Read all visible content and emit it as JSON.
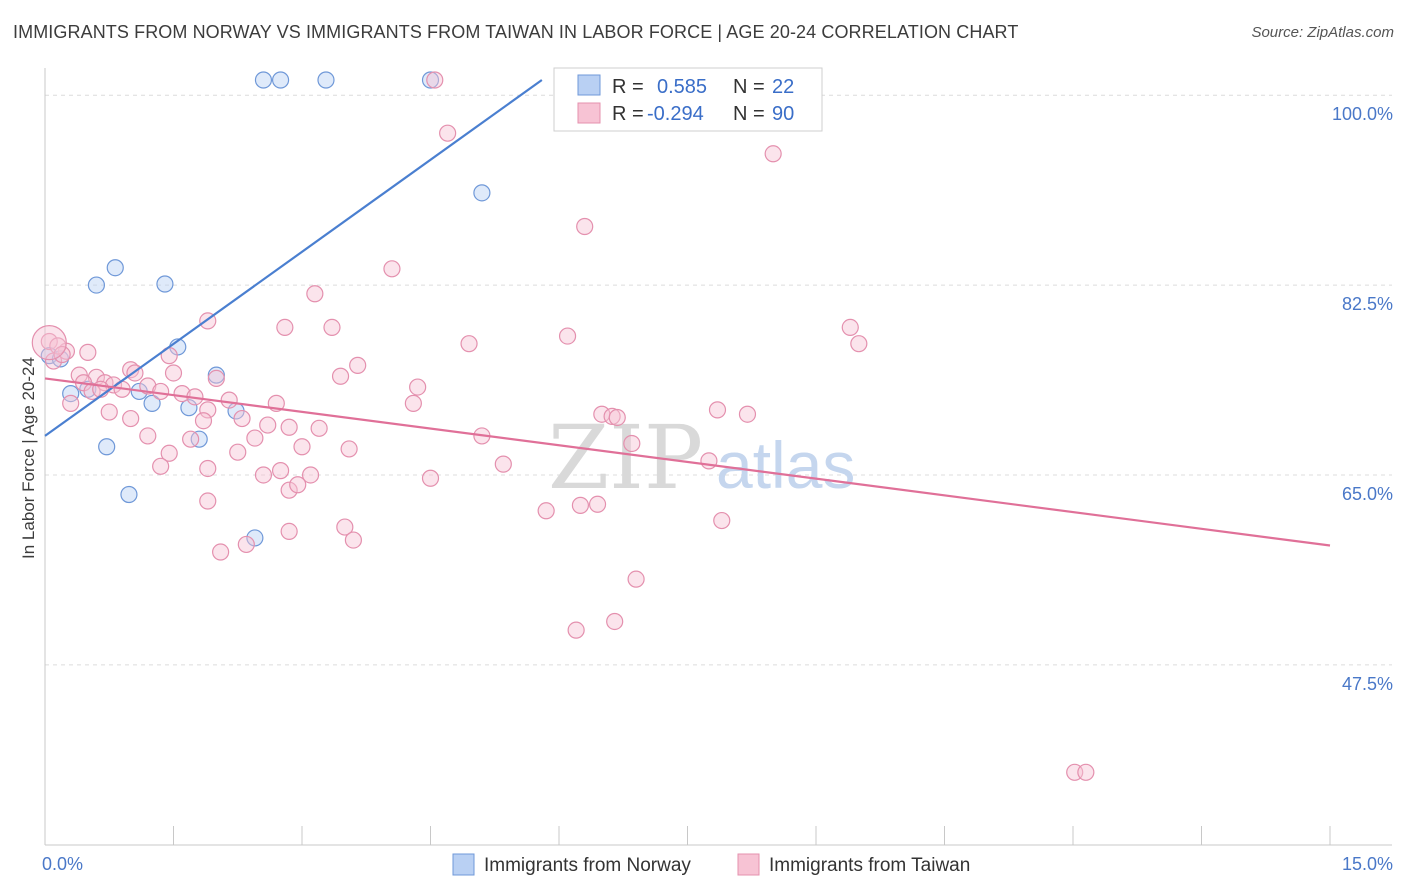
{
  "title": "IMMIGRANTS FROM NORWAY VS IMMIGRANTS FROM TAIWAN IN LABOR FORCE | AGE 20-24 CORRELATION CHART",
  "source": "Source: ZipAtlas.com",
  "watermark": {
    "zip": "ZIP",
    "atlas": "atlas"
  },
  "colors": {
    "norway": "#4a7fd0",
    "taiwan": "#e07098",
    "norway_fill": "#b9d0f3",
    "taiwan_fill": "#f7c3d4",
    "tick_label": "#4a78c8"
  },
  "legend": {
    "norway": {
      "r_label": "R =",
      "r_value": "0.585",
      "n_label": "N =",
      "n_value": "22"
    },
    "taiwan": {
      "r_label": "R =",
      "r_value": "-0.294",
      "n_label": "N =",
      "n_value": "90"
    }
  },
  "chart_data": {
    "type": "scatter",
    "title": "IMMIGRANTS FROM NORWAY VS IMMIGRANTS FROM TAIWAN IN LABOR FORCE | AGE 20-24 CORRELATION CHART",
    "xlabel": "",
    "ylabel": "In Labor Force | Age 20-24",
    "xlim": [
      0,
      15
    ],
    "ylim": [
      30.9,
      101.4
    ],
    "x_tick_labels": [
      "0.0%",
      "15.0%"
    ],
    "y_ticks": [
      47.5,
      65.0,
      82.5,
      100.0
    ],
    "y_tick_labels": [
      "47.5%",
      "65.0%",
      "82.5%",
      "100.0%"
    ],
    "grid": true,
    "legend_position": "top-center",
    "series": [
      {
        "name": "Immigrants from Norway",
        "color": "#4a7fd0",
        "trend": {
          "x": [
            0.0,
            5.8
          ],
          "y": [
            68.6,
            101.4
          ]
        },
        "points": [
          {
            "x": 2.55,
            "y": 101.4
          },
          {
            "x": 2.75,
            "y": 101.4
          },
          {
            "x": 3.28,
            "y": 101.4
          },
          {
            "x": 4.5,
            "y": 101.4
          },
          {
            "x": 5.1,
            "y": 91.0
          },
          {
            "x": 0.82,
            "y": 84.1
          },
          {
            "x": 0.6,
            "y": 82.5
          },
          {
            "x": 1.4,
            "y": 82.6
          },
          {
            "x": 0.05,
            "y": 76.0
          },
          {
            "x": 0.18,
            "y": 75.7
          },
          {
            "x": 1.55,
            "y": 76.8
          },
          {
            "x": 2.0,
            "y": 74.2
          },
          {
            "x": 0.3,
            "y": 72.5
          },
          {
            "x": 0.5,
            "y": 72.9
          },
          {
            "x": 1.1,
            "y": 72.7
          },
          {
            "x": 1.25,
            "y": 71.6
          },
          {
            "x": 1.68,
            "y": 71.2
          },
          {
            "x": 2.23,
            "y": 70.9
          },
          {
            "x": 0.72,
            "y": 67.6
          },
          {
            "x": 1.8,
            "y": 68.3
          },
          {
            "x": 0.98,
            "y": 63.2
          },
          {
            "x": 2.45,
            "y": 59.2
          }
        ]
      },
      {
        "name": "Immigrants from Taiwan",
        "color": "#e07098",
        "trend": {
          "x": [
            0.0,
            15.0
          ],
          "y": [
            73.9,
            58.5
          ]
        },
        "points": [
          {
            "x": 0.05,
            "y": 77.3
          },
          {
            "x": 0.25,
            "y": 76.4
          },
          {
            "x": 0.5,
            "y": 76.3
          },
          {
            "x": 0.1,
            "y": 75.5
          },
          {
            "x": 0.4,
            "y": 74.2
          },
          {
            "x": 0.6,
            "y": 74.0
          },
          {
            "x": 0.7,
            "y": 73.5
          },
          {
            "x": 0.8,
            "y": 73.3
          },
          {
            "x": 0.9,
            "y": 72.9
          },
          {
            "x": 1.0,
            "y": 74.7
          },
          {
            "x": 1.05,
            "y": 74.4
          },
          {
            "x": 1.2,
            "y": 73.2
          },
          {
            "x": 1.35,
            "y": 72.7
          },
          {
            "x": 1.45,
            "y": 76.0
          },
          {
            "x": 1.6,
            "y": 72.5
          },
          {
            "x": 1.75,
            "y": 72.2
          },
          {
            "x": 1.5,
            "y": 74.4
          },
          {
            "x": 1.9,
            "y": 71.0
          },
          {
            "x": 0.3,
            "y": 71.6
          },
          {
            "x": 0.75,
            "y": 70.8
          },
          {
            "x": 1.0,
            "y": 70.2
          },
          {
            "x": 1.2,
            "y": 68.6
          },
          {
            "x": 1.45,
            "y": 67.0
          },
          {
            "x": 1.7,
            "y": 68.3
          },
          {
            "x": 1.85,
            "y": 70.0
          },
          {
            "x": 2.0,
            "y": 73.9
          },
          {
            "x": 2.15,
            "y": 71.9
          },
          {
            "x": 2.3,
            "y": 70.2
          },
          {
            "x": 2.45,
            "y": 68.4
          },
          {
            "x": 2.6,
            "y": 69.6
          },
          {
            "x": 2.7,
            "y": 71.6
          },
          {
            "x": 2.85,
            "y": 69.4
          },
          {
            "x": 3.0,
            "y": 67.6
          },
          {
            "x": 3.2,
            "y": 69.3
          },
          {
            "x": 1.35,
            "y": 65.8
          },
          {
            "x": 1.9,
            "y": 65.6
          },
          {
            "x": 2.25,
            "y": 67.1
          },
          {
            "x": 2.55,
            "y": 65.0
          },
          {
            "x": 2.75,
            "y": 65.4
          },
          {
            "x": 3.1,
            "y": 65.0
          },
          {
            "x": 2.85,
            "y": 63.6
          },
          {
            "x": 2.95,
            "y": 64.1
          },
          {
            "x": 3.55,
            "y": 67.4
          },
          {
            "x": 1.9,
            "y": 62.6
          },
          {
            "x": 2.85,
            "y": 59.8
          },
          {
            "x": 3.5,
            "y": 60.2
          },
          {
            "x": 3.6,
            "y": 59.0
          },
          {
            "x": 2.05,
            "y": 57.9
          },
          {
            "x": 2.35,
            "y": 58.6
          },
          {
            "x": 1.9,
            "y": 79.2
          },
          {
            "x": 2.8,
            "y": 78.6
          },
          {
            "x": 3.15,
            "y": 81.7
          },
          {
            "x": 3.35,
            "y": 78.6
          },
          {
            "x": 3.45,
            "y": 74.1
          },
          {
            "x": 3.65,
            "y": 75.1
          },
          {
            "x": 4.05,
            "y": 84.0
          },
          {
            "x": 4.35,
            "y": 73.1
          },
          {
            "x": 4.3,
            "y": 71.6
          },
          {
            "x": 4.5,
            "y": 64.7
          },
          {
            "x": 4.7,
            "y": 96.5
          },
          {
            "x": 4.95,
            "y": 77.1
          },
          {
            "x": 5.1,
            "y": 68.6
          },
          {
            "x": 5.35,
            "y": 66.0
          },
          {
            "x": 4.55,
            "y": 101.4
          },
          {
            "x": 5.85,
            "y": 61.7
          },
          {
            "x": 6.1,
            "y": 77.8
          },
          {
            "x": 6.25,
            "y": 62.2
          },
          {
            "x": 6.45,
            "y": 62.3
          },
          {
            "x": 6.5,
            "y": 70.6
          },
          {
            "x": 6.62,
            "y": 70.4
          },
          {
            "x": 6.68,
            "y": 70.3
          },
          {
            "x": 6.85,
            "y": 67.9
          },
          {
            "x": 6.3,
            "y": 87.9
          },
          {
            "x": 6.2,
            "y": 50.7
          },
          {
            "x": 6.65,
            "y": 51.5
          },
          {
            "x": 6.9,
            "y": 55.4
          },
          {
            "x": 7.75,
            "y": 66.3
          },
          {
            "x": 7.9,
            "y": 60.8
          },
          {
            "x": 7.85,
            "y": 71.0
          },
          {
            "x": 8.2,
            "y": 70.6
          },
          {
            "x": 8.5,
            "y": 94.6
          },
          {
            "x": 9.4,
            "y": 78.6
          },
          {
            "x": 9.5,
            "y": 77.1
          },
          {
            "x": 12.02,
            "y": 37.6
          },
          {
            "x": 12.15,
            "y": 37.6
          },
          {
            "x": 0.15,
            "y": 76.9
          },
          {
            "x": 0.2,
            "y": 76.1
          },
          {
            "x": 0.45,
            "y": 73.5
          },
          {
            "x": 0.55,
            "y": 72.7
          },
          {
            "x": 0.65,
            "y": 72.9
          }
        ]
      }
    ]
  },
  "bottom_legend": {
    "norway": "Immigrants from Norway",
    "taiwan": "Immigrants from Taiwan"
  }
}
